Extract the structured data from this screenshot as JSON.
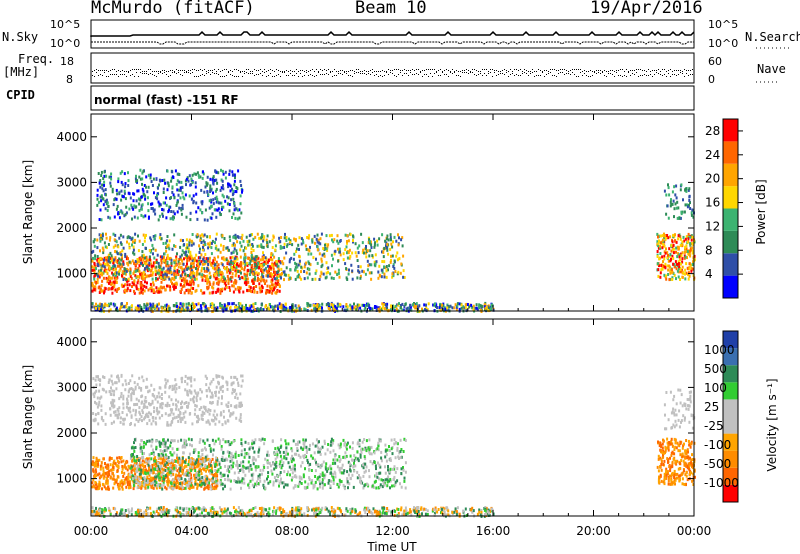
{
  "header": {
    "station": "McMurdo (fitACF)",
    "beam": "Beam 10",
    "date": "19/Apr/2016"
  },
  "panels": {
    "nsky_label": "N.Sky",
    "nsearch_label": "N.Search",
    "noise_tick_top": "10^5",
    "noise_tick_bottom": "10^0",
    "freq_label_1": "Freq.",
    "freq_label_2": "[MHz]",
    "freq_tick_top": "18",
    "freq_tick_bottom": "8",
    "nave_label": "Nave",
    "nave_tick_top": "60",
    "nave_tick_bottom": "0",
    "cpid_label": "CPID",
    "cpid_text": "normal (fast) -151 RF"
  },
  "colors": {
    "power": [
      "#0000ff",
      "#2f4fa8",
      "#2e8b57",
      "#3cb371",
      "#ffd700",
      "#ffa500",
      "#ff6600",
      "#ff0000"
    ],
    "velocity": [
      "#ff0000",
      "#ff6600",
      "#ff8c00",
      "#ffa500",
      "#c0c0c0",
      "#c0c0c0",
      "#32cd32",
      "#2e8b57",
      "#3a6fb0",
      "#1f3fa8"
    ]
  },
  "chart_data": [
    {
      "type": "heatmap",
      "quantity": "Power",
      "xlabel": "",
      "ylabel": "Slant Range [km]",
      "x_ticks": [
        "00:00",
        "04:00",
        "08:00",
        "12:00",
        "16:00",
        "20:00",
        "00:00"
      ],
      "y_ticks": [
        1000,
        2000,
        3000,
        4000
      ],
      "xlim_hours": [
        0,
        24
      ],
      "ylim_km": [
        180,
        4500
      ],
      "colorbar": {
        "label": "Power [dB]",
        "ticks": [
          4,
          8,
          12,
          16,
          20,
          24,
          28
        ],
        "range": [
          0,
          30
        ]
      }
    },
    {
      "type": "heatmap",
      "quantity": "Velocity",
      "xlabel": "Time UT",
      "ylabel": "Slant Range [km]",
      "x_ticks": [
        "00:00",
        "04:00",
        "08:00",
        "12:00",
        "16:00",
        "20:00",
        "00:00"
      ],
      "y_ticks": [
        1000,
        2000,
        3000,
        4000
      ],
      "xlim_hours": [
        0,
        24
      ],
      "ylim_km": [
        180,
        4500
      ],
      "colorbar": {
        "label": "Velocity [m s⁻¹]",
        "ticks": [
          "1000",
          "500",
          "100",
          "25",
          "-25",
          "-100",
          "-500",
          "-1000"
        ]
      }
    }
  ]
}
